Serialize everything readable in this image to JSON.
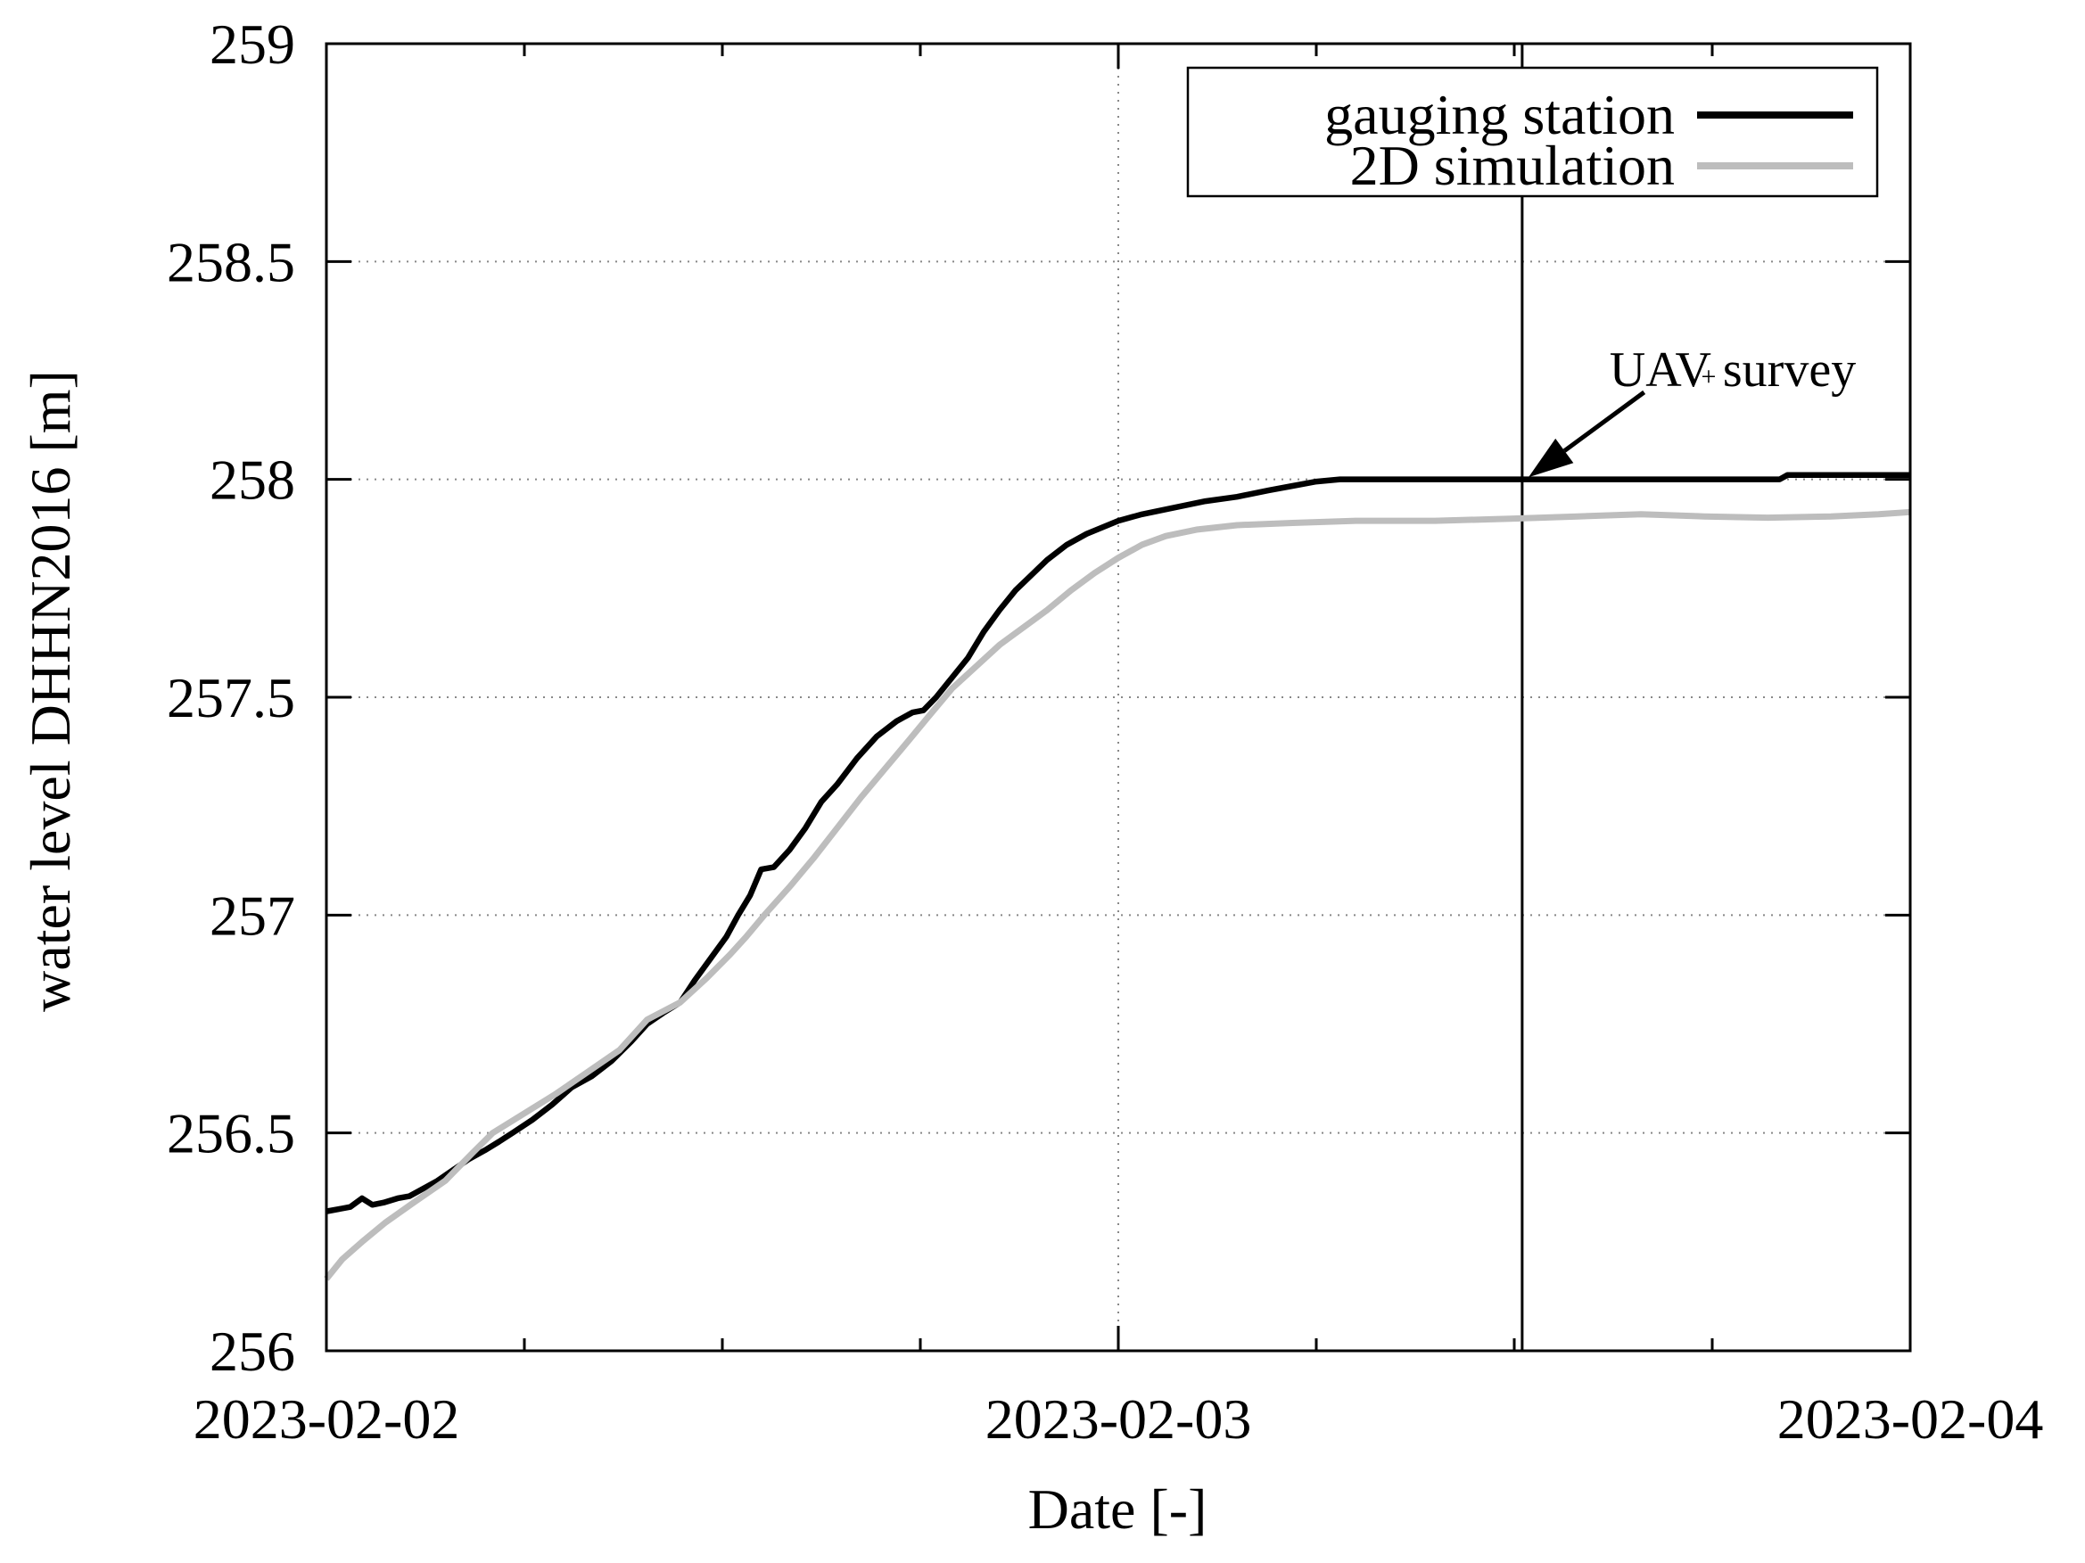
{
  "figure": {
    "background_color": "#ffffff",
    "text_color": "#000000",
    "grid_color": "#888888",
    "annotation": {
      "text": "UAV survey",
      "point_marker": "+"
    }
  },
  "chart_data": {
    "type": "line",
    "title": "",
    "xlabel": "Date [-]",
    "ylabel": "water level DHHN2016 [m]",
    "x_unit": "days since 2023-02-02 00:00",
    "xlim_days": [
      0,
      2
    ],
    "ylim": [
      256,
      259
    ],
    "grid": true,
    "legend_position": "top-right",
    "x_ticks": [
      {
        "days": 0,
        "label": "2023-02-02"
      },
      {
        "days": 1,
        "label": "2023-02-03"
      },
      {
        "days": 2,
        "label": "2023-02-04"
      }
    ],
    "x_minor_tick_days": 0.25,
    "y_ticks": [
      {
        "value": 256,
        "label": "256"
      },
      {
        "value": 256.5,
        "label": "256.5"
      },
      {
        "value": 257,
        "label": "257"
      },
      {
        "value": 257.5,
        "label": "257.5"
      },
      {
        "value": 258,
        "label": "258"
      },
      {
        "value": 258.5,
        "label": "258.5"
      },
      {
        "value": 259,
        "label": "259"
      }
    ],
    "series": [
      {
        "name": "gauging station",
        "color": "#000000",
        "width": 6.5,
        "points": [
          [
            0.0,
            256.32
          ],
          [
            0.015,
            256.325
          ],
          [
            0.03,
            256.33
          ],
          [
            0.045,
            256.35
          ],
          [
            0.058,
            256.335
          ],
          [
            0.072,
            256.34
          ],
          [
            0.09,
            256.35
          ],
          [
            0.105,
            256.355
          ],
          [
            0.12,
            256.37
          ],
          [
            0.14,
            256.39
          ],
          [
            0.16,
            256.415
          ],
          [
            0.18,
            256.44
          ],
          [
            0.2,
            256.46
          ],
          [
            0.218,
            256.48
          ],
          [
            0.235,
            256.5
          ],
          [
            0.26,
            256.53
          ],
          [
            0.285,
            256.565
          ],
          [
            0.31,
            256.605
          ],
          [
            0.335,
            256.63
          ],
          [
            0.36,
            256.665
          ],
          [
            0.385,
            256.71
          ],
          [
            0.405,
            256.75
          ],
          [
            0.425,
            256.775
          ],
          [
            0.447,
            256.8
          ],
          [
            0.465,
            256.85
          ],
          [
            0.485,
            256.9
          ],
          [
            0.505,
            256.95
          ],
          [
            0.52,
            257.0
          ],
          [
            0.535,
            257.045
          ],
          [
            0.549,
            257.105
          ],
          [
            0.565,
            257.11
          ],
          [
            0.585,
            257.15
          ],
          [
            0.605,
            257.2
          ],
          [
            0.625,
            257.26
          ],
          [
            0.645,
            257.3
          ],
          [
            0.67,
            257.36
          ],
          [
            0.695,
            257.41
          ],
          [
            0.72,
            257.445
          ],
          [
            0.74,
            257.465
          ],
          [
            0.754,
            257.47
          ],
          [
            0.77,
            257.5
          ],
          [
            0.79,
            257.545
          ],
          [
            0.81,
            257.59
          ],
          [
            0.83,
            257.65
          ],
          [
            0.85,
            257.7
          ],
          [
            0.87,
            257.745
          ],
          [
            0.89,
            257.78
          ],
          [
            0.91,
            257.815
          ],
          [
            0.935,
            257.85
          ],
          [
            0.96,
            257.875
          ],
          [
            1.0,
            257.905
          ],
          [
            1.03,
            257.92
          ],
          [
            1.07,
            257.935
          ],
          [
            1.11,
            257.95
          ],
          [
            1.15,
            257.96
          ],
          [
            1.19,
            257.975
          ],
          [
            1.22,
            257.985
          ],
          [
            1.25,
            257.995
          ],
          [
            1.28,
            258.0
          ],
          [
            1.5,
            258.0
          ],
          [
            1.7,
            258.0
          ],
          [
            1.835,
            258.0
          ],
          [
            1.845,
            258.01
          ],
          [
            2.0,
            258.01
          ]
        ]
      },
      {
        "name": "2D simulation",
        "color": "#bdbdbd",
        "width": 7,
        "points": [
          [
            0.0,
            256.165
          ],
          [
            0.02,
            256.21
          ],
          [
            0.045,
            256.25
          ],
          [
            0.075,
            256.295
          ],
          [
            0.11,
            256.34
          ],
          [
            0.15,
            256.39
          ],
          [
            0.185,
            256.455
          ],
          [
            0.21,
            256.5
          ],
          [
            0.25,
            256.545
          ],
          [
            0.29,
            256.59
          ],
          [
            0.33,
            256.64
          ],
          [
            0.37,
            256.69
          ],
          [
            0.405,
            256.76
          ],
          [
            0.447,
            256.8
          ],
          [
            0.48,
            256.855
          ],
          [
            0.51,
            256.91
          ],
          [
            0.53,
            256.95
          ],
          [
            0.553,
            257.0
          ],
          [
            0.585,
            257.065
          ],
          [
            0.615,
            257.13
          ],
          [
            0.645,
            257.2
          ],
          [
            0.675,
            257.27
          ],
          [
            0.705,
            257.335
          ],
          [
            0.735,
            257.4
          ],
          [
            0.76,
            257.455
          ],
          [
            0.79,
            257.52
          ],
          [
            0.82,
            257.57
          ],
          [
            0.85,
            257.62
          ],
          [
            0.88,
            257.66
          ],
          [
            0.91,
            257.7
          ],
          [
            0.94,
            257.745
          ],
          [
            0.97,
            257.785
          ],
          [
            1.0,
            257.82
          ],
          [
            1.03,
            257.85
          ],
          [
            1.06,
            257.87
          ],
          [
            1.1,
            257.885
          ],
          [
            1.15,
            257.895
          ],
          [
            1.22,
            257.9
          ],
          [
            1.3,
            257.905
          ],
          [
            1.4,
            257.905
          ],
          [
            1.5,
            257.91
          ],
          [
            1.58,
            257.915
          ],
          [
            1.66,
            257.92
          ],
          [
            1.74,
            257.915
          ],
          [
            1.82,
            257.912
          ],
          [
            1.9,
            257.915
          ],
          [
            1.96,
            257.92
          ],
          [
            2.0,
            257.925
          ]
        ]
      }
    ],
    "annotations": [
      {
        "type": "vline",
        "x_days": 1.51,
        "meaning": "UAV survey time"
      },
      {
        "type": "arrow",
        "from_days": 1.664,
        "from_level": 258.2,
        "to_days": 1.518,
        "to_level": 258.005
      },
      {
        "type": "label",
        "text": "UAV survey",
        "point_marker": "+",
        "at_days": 1.776,
        "at_level": 258.235
      }
    ]
  }
}
